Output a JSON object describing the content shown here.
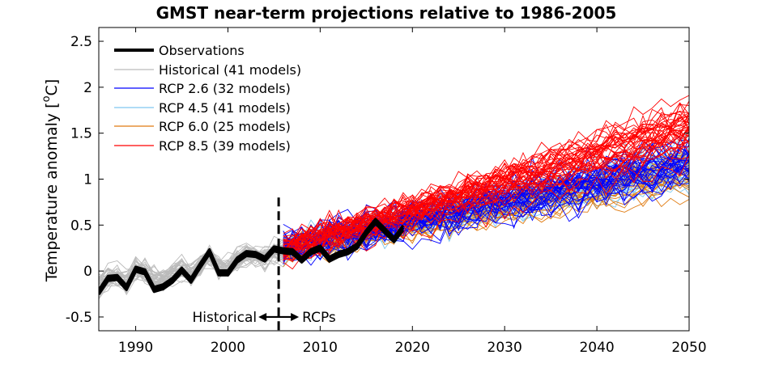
{
  "chart_data": {
    "type": "line",
    "title": "GMST near-term projections relative to 1986-2005",
    "ylabel": "Temperature anomaly  [ °C]",
    "ylabel_main": "Temperature anomaly  [",
    "ylabel_sup": "o",
    "ylabel_unit": "C]",
    "xlabel": "",
    "xlim": [
      1986,
      2050
    ],
    "ylim": [
      -0.65,
      2.65
    ],
    "x_ticks": [
      1990,
      2000,
      2010,
      2020,
      2030,
      2040,
      2050
    ],
    "x_tick_labels": [
      "1990",
      "2000",
      "2010",
      "2020",
      "2030",
      "2040",
      "2050"
    ],
    "y_ticks": [
      -0.5,
      0,
      0.5,
      1,
      1.5,
      2,
      2.5
    ],
    "y_tick_labels": [
      "-0.5",
      "0",
      "0.5",
      "1",
      "1.5",
      "2",
      "2.5"
    ],
    "grid": false,
    "legend_position": "top-left",
    "divider_year": 2005.5,
    "annotations": {
      "left": "Historical",
      "right": "RCPs"
    },
    "series": [
      {
        "name": "Observations",
        "color": "#000000",
        "kind": "observations",
        "x": [
          1986,
          1987,
          1988,
          1989,
          1990,
          1991,
          1992,
          1993,
          1994,
          1995,
          1996,
          1997,
          1998,
          1999,
          2000,
          2001,
          2002,
          2003,
          2004,
          2005,
          2006,
          2007,
          2008,
          2009,
          2010,
          2011,
          2012,
          2013,
          2014,
          2015,
          2016,
          2017,
          2018,
          2019
        ],
        "y": [
          -0.23,
          -0.08,
          -0.07,
          -0.18,
          0.02,
          -0.01,
          -0.2,
          -0.17,
          -0.1,
          0.01,
          -0.1,
          0.06,
          0.21,
          -0.02,
          -0.02,
          0.12,
          0.19,
          0.18,
          0.13,
          0.24,
          0.22,
          0.21,
          0.12,
          0.21,
          0.25,
          0.13,
          0.18,
          0.21,
          0.27,
          0.42,
          0.54,
          0.44,
          0.34,
          0.47
        ]
      },
      {
        "name": "Historical (41 models)",
        "color": "#bbbbbb",
        "kind": "historical",
        "count": 41
      },
      {
        "name": "RCP 2.6 (32 models)",
        "color": "#0000ff",
        "kind": "rcp",
        "count": 32
      },
      {
        "name": "RCP 4.5 (41 models)",
        "color": "#7fc8f0",
        "kind": "rcp",
        "count": 41
      },
      {
        "name": "RCP 6.0 (25 models)",
        "color": "#e07b10",
        "kind": "rcp",
        "count": 25
      },
      {
        "name": "RCP 8.5 (39 models)",
        "color": "#ff0000",
        "kind": "rcp",
        "count": 39
      }
    ]
  }
}
